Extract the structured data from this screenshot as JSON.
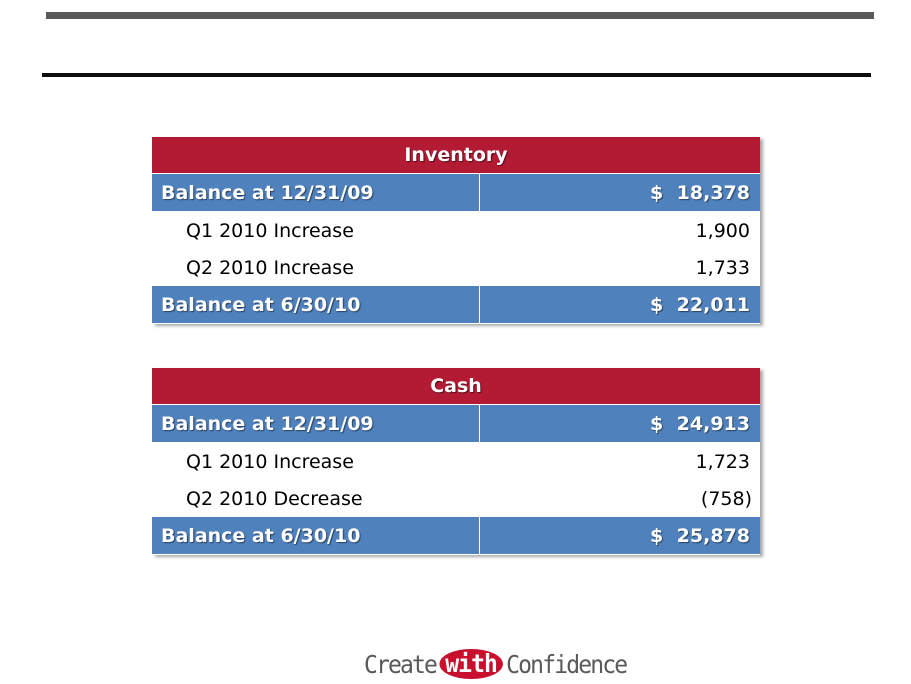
{
  "tables": [
    {
      "title": "Inventory",
      "opening": {
        "label": "Balance at 12/31/09",
        "currency": "$",
        "amount": "18,378"
      },
      "rows": [
        {
          "label": "Q1 2010 Increase",
          "value": "1,900"
        },
        {
          "label": "Q2 2010 Increase",
          "value": "1,733"
        }
      ],
      "closing": {
        "label": "Balance at 6/30/10",
        "currency": "$",
        "amount": "22,011"
      }
    },
    {
      "title": "Cash",
      "opening": {
        "label": "Balance at 12/31/09",
        "currency": "$",
        "amount": "24,913"
      },
      "rows": [
        {
          "label": "Q1 2010 Increase",
          "value": "1,723"
        },
        {
          "label": "Q2 2010 Decrease",
          "value": "(758)"
        }
      ],
      "closing": {
        "label": "Balance at 6/30/10",
        "currency": "$",
        "amount": "25,878"
      }
    }
  ],
  "logo": {
    "left": "Create",
    "middle": "with",
    "right": "Confidence"
  },
  "colors": {
    "header": "#b31b34",
    "balance_row": "#4f81bd",
    "rule_top": "#595959",
    "rule_mid": "#0d0d0d"
  }
}
